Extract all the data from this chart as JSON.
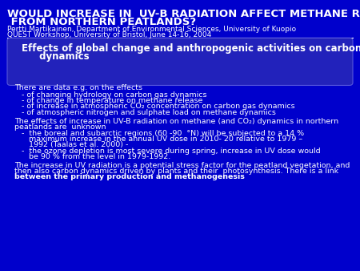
{
  "bg_color": "#0000CC",
  "title_line1": "WOULD INCREASE IN  UV-B RADIATION AFFECT METHANE RELEASE",
  "title_line2": " FROM NORTHERN PEATLANDS?",
  "subtitle1": "Pertti Martikainen, Department of Environmental Sciences, University of Kuopio",
  "subtitle2": "QUEST Workshop, University of Bristol, June 14-16, 2004",
  "box_title_line1": "Effects of global change and anthropogenic activities on carbon gas",
  "box_title_line2": " dynamics",
  "text_color": "#FFFFFF",
  "title_color": "#FFFFFF",
  "font_size_title": 9.5,
  "font_size_subtitle": 6.5,
  "font_size_body": 6.8,
  "font_size_box_title": 8.5
}
